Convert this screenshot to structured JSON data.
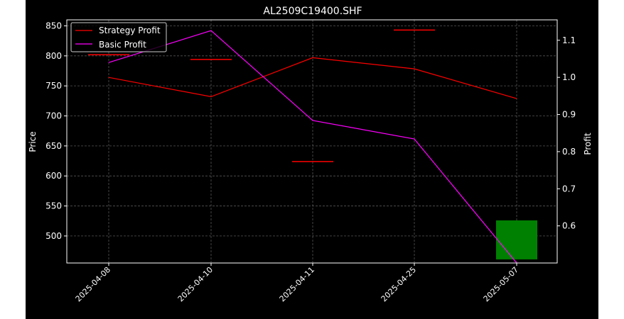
{
  "chart_data": {
    "type": "line",
    "title": "AL2509C19400.SHF",
    "xlabel": "",
    "ylabel": "Price",
    "y2label": "Profit",
    "categories": [
      "2025-04-08",
      "2025-04-10",
      "2025-04-11",
      "2025-04-25",
      "2025-05-07"
    ],
    "ylim": [
      455,
      860
    ],
    "y_ticks": [
      500,
      550,
      600,
      650,
      700,
      750,
      800,
      850
    ],
    "y2lim": [
      0.5,
      1.155
    ],
    "y2_ticks": [
      0.6,
      0.7,
      0.8,
      0.9,
      1.0,
      1.1
    ],
    "grid": true,
    "legend_position": "top-left",
    "series": [
      {
        "name": "Strategy Profit",
        "axis": "right",
        "color": "#ff0000",
        "values": [
          1.0,
          0.948,
          1.053,
          1.023,
          0.943
        ]
      },
      {
        "name": "Basic Profit",
        "axis": "right",
        "color": "#ff00ff",
        "values": [
          1.04,
          1.126,
          0.884,
          0.834,
          0.5
        ]
      }
    ],
    "candles": [
      {
        "x": "2025-04-08",
        "open": 802,
        "close": 802,
        "color": "#ff0000"
      },
      {
        "x": "2025-04-10",
        "open": 794,
        "close": 794,
        "color": "#ff0000"
      },
      {
        "x": "2025-04-11",
        "open": 624,
        "close": 624,
        "color": "#ff0000"
      },
      {
        "x": "2025-04-25",
        "open": 843,
        "close": 843,
        "color": "#ff0000"
      },
      {
        "x": "2025-05-07",
        "open": 526,
        "close": 461,
        "color": "#008000"
      }
    ],
    "colors": {
      "background": "#000000",
      "axes": "#ffffff",
      "grid": "#555555"
    }
  }
}
